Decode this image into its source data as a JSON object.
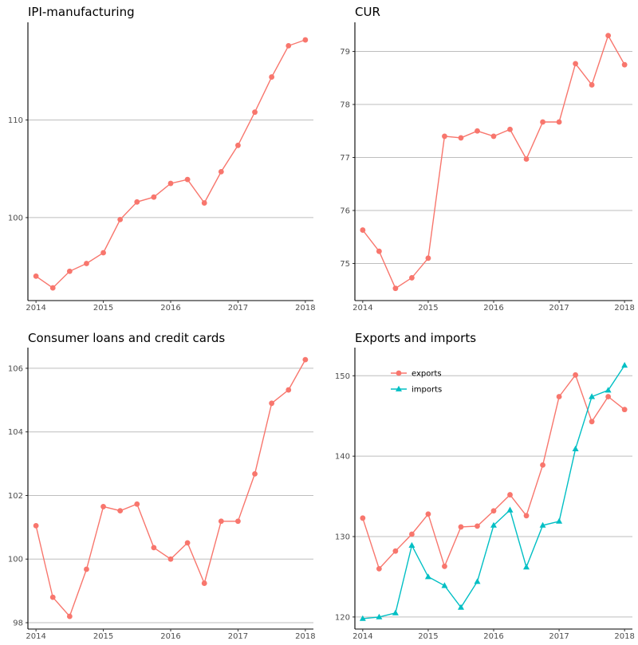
{
  "chart_data": [
    {
      "type": "line",
      "title": "IPI-manufacturing",
      "xlabel": "",
      "ylabel": "",
      "xlim": [
        2013.88,
        2018.12
      ],
      "ylim": [
        91.5,
        120.0
      ],
      "yticks": [
        100,
        110
      ],
      "xticks": [
        2014,
        2015,
        2016,
        2017,
        2018
      ],
      "grid": "horizontal",
      "series": [
        {
          "color": "#F8766D",
          "marker": "circle",
          "x": [
            2014,
            2014.25,
            2014.5,
            2014.75,
            2015,
            2015.25,
            2015.5,
            2015.75,
            2016,
            2016.25,
            2016.5,
            2016.75,
            2017,
            2017.25,
            2017.5,
            2017.75,
            2018
          ],
          "y": [
            94.0,
            92.8,
            94.5,
            95.3,
            96.4,
            99.8,
            101.6,
            102.1,
            103.5,
            103.9,
            101.5,
            104.7,
            107.4,
            110.8,
            114.4,
            117.6,
            118.2
          ]
        }
      ]
    },
    {
      "type": "line",
      "title": "CUR",
      "xlabel": "",
      "ylabel": "",
      "xlim": [
        2013.88,
        2018.12
      ],
      "ylim": [
        74.3,
        79.55
      ],
      "yticks": [
        75,
        76,
        77,
        78,
        79
      ],
      "xticks": [
        2014,
        2015,
        2016,
        2017,
        2018
      ],
      "grid": "horizontal",
      "series": [
        {
          "color": "#F8766D",
          "marker": "circle",
          "x": [
            2014,
            2014.25,
            2014.5,
            2014.75,
            2015,
            2015.25,
            2015.5,
            2015.75,
            2016,
            2016.25,
            2016.5,
            2016.75,
            2017,
            2017.25,
            2017.5,
            2017.75,
            2018
          ],
          "y": [
            75.63,
            75.23,
            74.53,
            74.73,
            75.1,
            77.4,
            77.37,
            77.5,
            77.4,
            77.53,
            76.97,
            77.67,
            77.67,
            78.77,
            78.37,
            79.3,
            78.75
          ]
        }
      ]
    },
    {
      "type": "line",
      "title": "Consumer loans and credit cards",
      "xlabel": "",
      "ylabel": "",
      "xlim": [
        2013.88,
        2018.12
      ],
      "ylim": [
        97.8,
        106.65
      ],
      "yticks": [
        98,
        100,
        102,
        104,
        106
      ],
      "xticks": [
        2014,
        2015,
        2016,
        2017,
        2018
      ],
      "grid": "horizontal",
      "series": [
        {
          "color": "#F8766D",
          "marker": "circle",
          "x": [
            2014,
            2014.25,
            2014.5,
            2014.75,
            2015,
            2015.25,
            2015.5,
            2015.75,
            2016,
            2016.25,
            2016.5,
            2016.75,
            2017,
            2017.25,
            2017.5,
            2017.75,
            2018
          ],
          "y": [
            101.05,
            98.8,
            98.2,
            99.68,
            101.65,
            101.52,
            101.73,
            100.36,
            100.0,
            100.51,
            99.24,
            101.19,
            101.19,
            102.68,
            104.9,
            105.32,
            106.27
          ]
        }
      ]
    },
    {
      "type": "line",
      "title": "Exports and imports",
      "xlabel": "",
      "ylabel": "",
      "xlim": [
        2013.88,
        2018.12
      ],
      "ylim": [
        118.5,
        153.5
      ],
      "yticks": [
        120,
        130,
        140,
        150
      ],
      "xticks": [
        2014,
        2015,
        2016,
        2017,
        2018
      ],
      "grid": "horizontal",
      "legend": "top-left",
      "series": [
        {
          "name": "exports",
          "color": "#F8766D",
          "marker": "circle",
          "x": [
            2014,
            2014.25,
            2014.5,
            2014.75,
            2015,
            2015.25,
            2015.5,
            2015.75,
            2016,
            2016.25,
            2016.5,
            2016.75,
            2017,
            2017.25,
            2017.5,
            2017.75,
            2018
          ],
          "y": [
            132.3,
            126.0,
            128.2,
            130.3,
            132.8,
            126.3,
            131.2,
            131.3,
            133.2,
            135.2,
            132.6,
            138.9,
            147.4,
            150.1,
            144.3,
            147.4,
            145.8
          ]
        },
        {
          "name": "imports",
          "color": "#00BFC4",
          "marker": "triangle",
          "x": [
            2014,
            2014.25,
            2014.5,
            2014.75,
            2015,
            2015.25,
            2015.5,
            2015.75,
            2016,
            2016.25,
            2016.5,
            2016.75,
            2017,
            2017.25,
            2017.5,
            2017.75,
            2018
          ],
          "y": [
            119.8,
            120.0,
            120.5,
            128.9,
            125.0,
            123.9,
            121.2,
            124.4,
            131.4,
            133.3,
            126.2,
            131.4,
            131.9,
            140.9,
            147.4,
            148.2,
            151.3
          ]
        }
      ]
    }
  ]
}
